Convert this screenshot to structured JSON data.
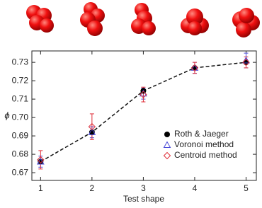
{
  "chart_data": {
    "type": "line",
    "x": [
      1,
      2,
      3,
      4,
      5
    ],
    "xlabel": "Test shape",
    "ylabel": "ϕ",
    "xlim": [
      0.83,
      5.2
    ],
    "xticks": [
      1,
      2,
      3,
      4,
      5
    ],
    "ylim": [
      0.6658,
      0.7362
    ],
    "yticks": [
      0.67,
      0.68,
      0.69,
      {
        "value": 0.7,
        "label": "0.70"
      },
      0.71,
      0.72,
      0.73
    ],
    "line_series": 0,
    "series": [
      {
        "name": "Roth & Jaeger",
        "color": "#000000",
        "marker": "circle",
        "values": [
          0.676,
          0.692,
          0.7145,
          0.727,
          0.73
        ]
      },
      {
        "name": "Voronoi method",
        "color": "#4a4ad8",
        "marker": "triangle",
        "values": [
          0.676,
          0.692,
          0.713,
          0.727,
          0.731
        ],
        "errors": [
          0.003,
          0.003,
          0.003,
          0.003,
          0.004
        ]
      },
      {
        "name": "Centroid method",
        "color": "#e0303a",
        "marker": "diamond",
        "values": [
          0.677,
          0.695,
          0.7125,
          0.727,
          0.73
        ],
        "errors": [
          0.005,
          0.007,
          0.004,
          0.003,
          0.003
        ]
      }
    ]
  }
}
